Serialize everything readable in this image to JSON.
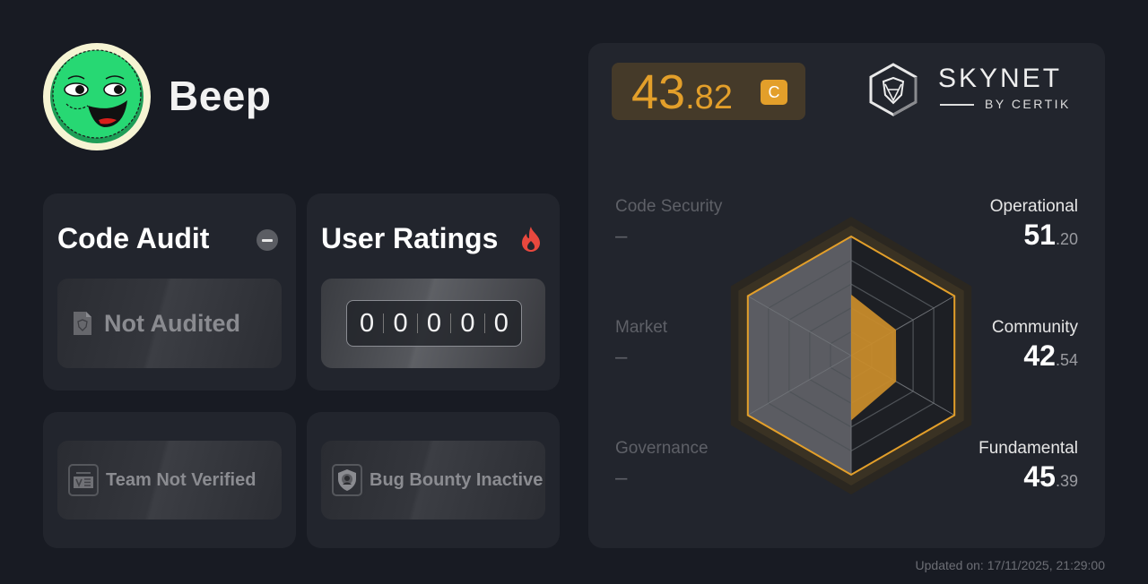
{
  "project": {
    "name": "Beep",
    "avatar": "green-smiling-face-token-logo"
  },
  "code_audit": {
    "title": "Code Audit",
    "status_icon": "minus-circle-icon",
    "status_label": "Not Audited",
    "status_item_icon": "document-shield-icon"
  },
  "user_ratings": {
    "title": "User Ratings",
    "title_icon": "fire-icon",
    "digits": [
      "0",
      "0",
      "0",
      "0",
      "0"
    ]
  },
  "team": {
    "label": "Team Not Verified",
    "icon": "id-card-icon"
  },
  "bug_bounty": {
    "label": "Bug Bounty Inactive",
    "icon": "shield-hacker-icon"
  },
  "score": {
    "integer": "43",
    "decimal": ".82",
    "grade": "C",
    "accent": "#e39f2a"
  },
  "brand": {
    "title": "SKYNET",
    "subtitle": "BY CERTIK",
    "icon": "skynet-hexagon-shield-icon"
  },
  "metrics_left": [
    {
      "label": "Code Security",
      "value": "–"
    },
    {
      "label": "Market",
      "value": "–"
    },
    {
      "label": "Governance",
      "value": "–"
    }
  ],
  "metrics_right": [
    {
      "label": "Operational",
      "integer": "51",
      "decimal": ".20"
    },
    {
      "label": "Community",
      "integer": "42",
      "decimal": ".54"
    },
    {
      "label": "Fundamental",
      "integer": "45",
      "decimal": ".39"
    }
  ],
  "chart_data": {
    "type": "radar",
    "axes": [
      "Operational",
      "Community",
      "Fundamental",
      "Governance",
      "Market",
      "Code Security"
    ],
    "values": [
      51.2,
      42.54,
      45.39,
      null,
      null,
      null
    ],
    "range": [
      0,
      100
    ],
    "grid_levels": 5,
    "unavailable_axes_shaded": [
      "Governance",
      "Market",
      "Code Security"
    ]
  },
  "footer": {
    "updated": "Updated on: 17/11/2025, 21:29:00"
  }
}
